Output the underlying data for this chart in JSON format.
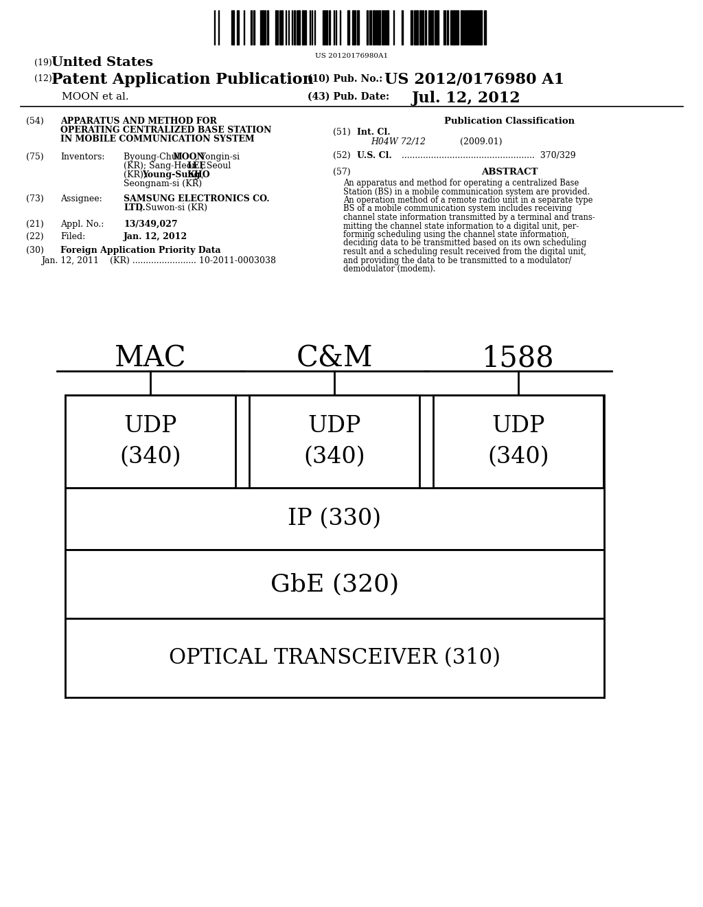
{
  "background_color": "#ffffff",
  "barcode_text": "US 20120176980A1",
  "title_19": "(19) United States",
  "title_12": "(12) Patent Application Publication",
  "pub_no_label": "(10) Pub. No.:",
  "pub_no_value": "US 2012/0176980 A1",
  "pub_date_label": "(43) Pub. Date:",
  "pub_date_value": "Jul. 12, 2012",
  "moon_et_al": "MOON et al.",
  "diagram": {
    "labels_top": [
      "MAC",
      "C&M",
      "1588"
    ],
    "layer_udp": "UDP\n(340)",
    "layer_ip": "IP (330)",
    "layer_gbe": "GbE (320)",
    "layer_optical": "OPTICAL TRANSCEIVER (310)"
  }
}
